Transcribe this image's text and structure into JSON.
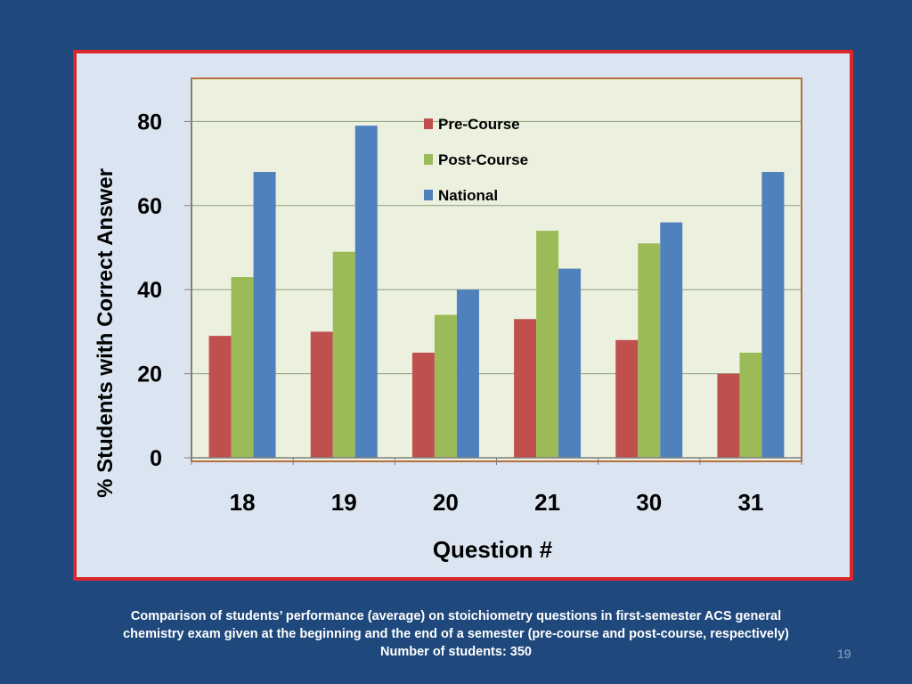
{
  "chart_data": {
    "type": "bar",
    "ylabel": "% Students with Correct Answer",
    "xlabel": "Question #",
    "categories": [
      "18",
      "19",
      "20",
      "21",
      "30",
      "31"
    ],
    "series": [
      {
        "name": "Pre-Course",
        "color": "#c0504d",
        "values": [
          29,
          30,
          25,
          33,
          28,
          20
        ]
      },
      {
        "name": "Post-Course",
        "color": "#9bbb59",
        "values": [
          43,
          49,
          34,
          54,
          51,
          25
        ]
      },
      {
        "name": "National",
        "color": "#4f81bd",
        "values": [
          68,
          79,
          40,
          45,
          56,
          68
        ]
      }
    ],
    "yticks": [
      "0",
      "20",
      "40",
      "60",
      "80"
    ],
    "ylim": [
      0,
      90
    ],
    "grid": true,
    "legend_position": "top-left"
  },
  "caption": {
    "line1": "Comparison of students’ performance (average) on stoichiometry questions in first-semester ACS general",
    "line2": "chemistry exam given at the beginning and the end of a semester (pre-course and post-course, respectively)",
    "line3": "Number of students: 350"
  },
  "slide_number": "19",
  "colors": {
    "background": "#1f497d",
    "frame_border": "#d9262b",
    "frame_fill": "#dbe5f1",
    "plot_fill": "#ebf1de",
    "plot_border": "#b5713d"
  }
}
